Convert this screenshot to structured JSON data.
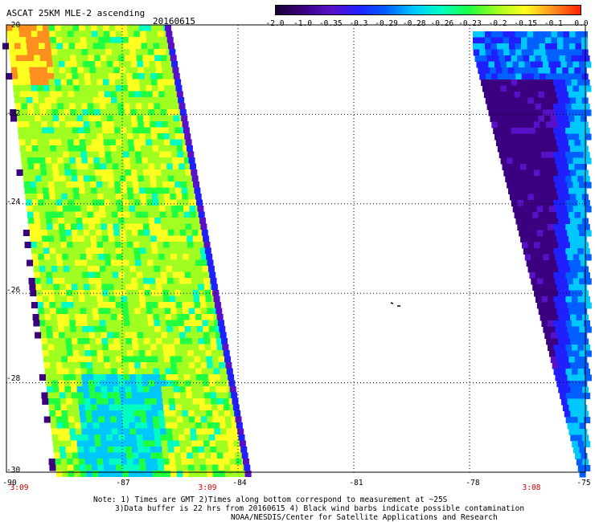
{
  "header": {
    "title": "ASCAT 25KM MLE-2 ascending",
    "date": "20160615"
  },
  "colorbar": {
    "labels": [
      "-2.0",
      "-1.0",
      "-0.35",
      "-0.3",
      "-0.29",
      "-0.28",
      "-0.26",
      "-0.23",
      "-0.2",
      "-0.15",
      "-0.1",
      "0.0"
    ],
    "colors": [
      "#1a0033",
      "#3a0080",
      "#5a10c8",
      "#2020ff",
      "#0060ff",
      "#00c8ff",
      "#00ffc0",
      "#20ff40",
      "#a0ff20",
      "#ffff20",
      "#ff9020",
      "#ff2000"
    ]
  },
  "map": {
    "lat_range": [
      -30,
      -20
    ],
    "lon_range": [
      -90,
      -75
    ],
    "y_labels": [
      "-20",
      "-22",
      "-24",
      "-26",
      "-28",
      "-30"
    ],
    "x_labels": [
      "-90",
      "-87",
      "-84",
      "-81",
      "-78",
      "-75"
    ],
    "times": [
      "3:09",
      "3:09",
      "3:08"
    ],
    "swaths": [
      {
        "name": "west-swath",
        "dominant_colors": [
          "#a0ff20",
          "#ffff20",
          "#20ff40",
          "#00c8ff"
        ]
      },
      {
        "name": "east-swath",
        "dominant_colors": [
          "#3a0080",
          "#2020ff",
          "#0060ff",
          "#00c8ff"
        ]
      }
    ]
  },
  "notes": {
    "line1": "Note: 1) Times are GMT 2)Times along bottom correspond to measurement at ~25S",
    "line2": "3)Data buffer is 22 hrs from 20160615 4) Black wind barbs indicate possible contamination",
    "line3": "NOAA/NESDIS/Center for Satellite Applications and Research"
  }
}
